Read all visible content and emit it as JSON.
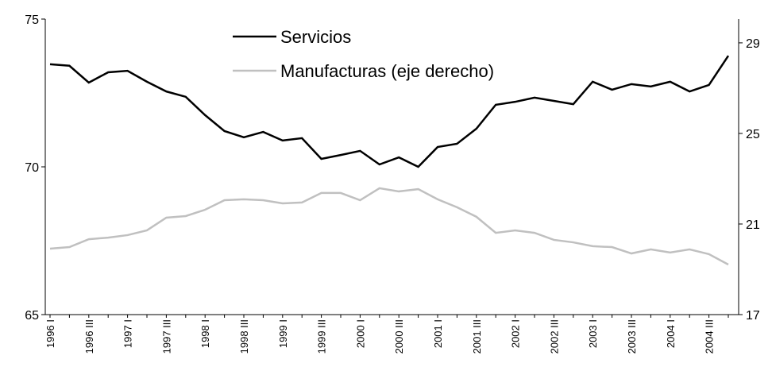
{
  "chart_data": {
    "type": "line",
    "categories": [
      "1996 I",
      null,
      "1996 III",
      null,
      "1997 I",
      null,
      "1997 III",
      null,
      "1998 I",
      null,
      "1998 III",
      null,
      "1999 I",
      null,
      "1999 III",
      null,
      "2000 I",
      null,
      "2000 III",
      null,
      "2001 I",
      null,
      "2001 III",
      null,
      "2002 I",
      null,
      "2002 III",
      null,
      "2003 I",
      null,
      "2003 III",
      null,
      "2004 I",
      null,
      "2004 III",
      null
    ],
    "series": [
      {
        "name": "Servicios",
        "color": "#000000",
        "axis": "y",
        "values": [
          73.47,
          73.42,
          72.85,
          73.2,
          73.25,
          72.88,
          72.55,
          72.37,
          71.75,
          71.21,
          71.0,
          71.18,
          70.89,
          70.97,
          70.27,
          70.4,
          70.54,
          70.08,
          70.32,
          70.0,
          70.67,
          70.78,
          71.29,
          72.1,
          72.2,
          72.34,
          72.23,
          72.12,
          72.88,
          72.61,
          72.8,
          72.72,
          72.88,
          72.55,
          72.77,
          73.76
        ]
      },
      {
        "name": "Manufacturas (eje derecho)",
        "color": "#c0c0c0",
        "axis": "y2",
        "values": [
          19.91,
          19.98,
          20.33,
          20.4,
          20.51,
          20.72,
          21.28,
          21.35,
          21.63,
          22.05,
          22.09,
          22.05,
          21.91,
          21.95,
          22.37,
          22.37,
          22.05,
          22.58,
          22.44,
          22.54,
          22.09,
          21.74,
          21.32,
          20.61,
          20.72,
          20.61,
          20.3,
          20.19,
          20.02,
          19.98,
          19.7,
          19.88,
          19.74,
          19.88,
          19.67,
          19.21
        ]
      }
    ],
    "ylim": [
      65,
      75
    ],
    "yticks": [
      65,
      70,
      75
    ],
    "y2lim": [
      17,
      30.05
    ],
    "y2ticks": [
      17,
      21,
      25,
      29
    ],
    "legend": "upper center",
    "grid": false
  }
}
